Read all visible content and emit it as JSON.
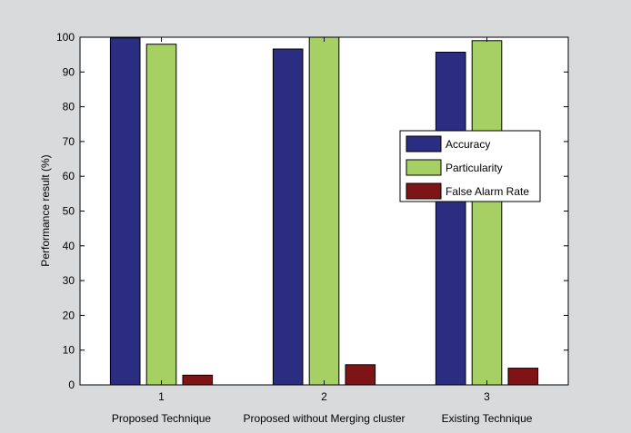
{
  "chart_data": {
    "type": "bar",
    "title": "",
    "xlabel": "",
    "ylabel": "Performance result (%)",
    "ylim": [
      0,
      100
    ],
    "yticks": [
      0,
      10,
      20,
      30,
      40,
      50,
      60,
      70,
      80,
      90,
      100
    ],
    "grid": false,
    "legend_position": "right",
    "categories": [
      "1",
      "2",
      "3"
    ],
    "category_sublabels": [
      "Proposed Technique",
      "Proposed without Merging cluster",
      "Existing Technique"
    ],
    "series": [
      {
        "name": "Accuracy",
        "color": "#2b2e80",
        "values": [
          99.8,
          96.6,
          95.7
        ]
      },
      {
        "name": "Particularity",
        "color": "#a6cf64",
        "values": [
          98.0,
          100.0,
          99.0
        ]
      },
      {
        "name": "False Alarm Rate",
        "color": "#7f1416",
        "values": [
          2.8,
          5.8,
          4.8
        ]
      }
    ]
  }
}
